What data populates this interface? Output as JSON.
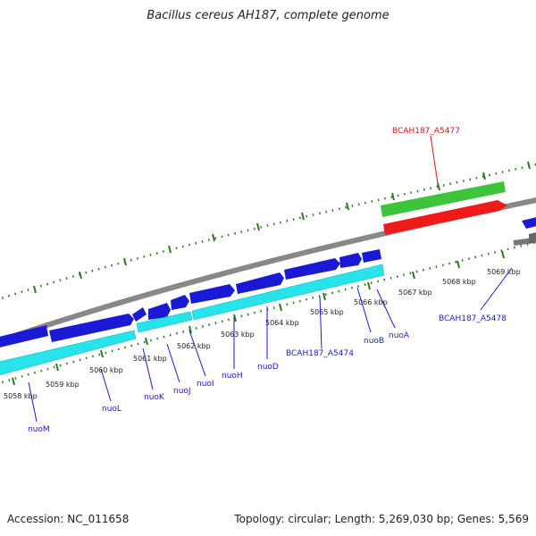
{
  "title": "Bacillus cereus AH187, complete genome",
  "footer": {
    "accession": "Accession: NC_011658",
    "summary": "Topology: circular; Length: 5,269,030 bp; Genes: 5,569"
  },
  "colors": {
    "backbone": "#888888",
    "tick": "#2a7d1e",
    "cds_forward": "#1a1ad6",
    "cds_highlight": "#4a2fa0",
    "gene_bar": "#27e3ea",
    "rrna_green": "#3ec43a",
    "rrna_red": "#ef1a1a",
    "label_blue": "#1a1acc",
    "label_red": "#dd1111"
  },
  "kbp_labels": [
    "5058 kbp",
    "5059 kbp",
    "5060 kbp",
    "5061 kbp",
    "5062 kbp",
    "5063 kbp",
    "5064 kbp",
    "5065 kbp",
    "5066 kbp",
    "5067 kbp",
    "5068 kbp",
    "5069 kbp"
  ],
  "gene_labels": {
    "bcah187_a5477": "BCAH187_A5477",
    "bcah187_a5478": "BCAH187_A5478",
    "bcah187_a5474": "BCAH187_A5474",
    "nuoM": "nuoM",
    "nuoL": "nuoL",
    "nuoK": "nuoK",
    "nuoJ": "nuoJ",
    "nuoI": "nuoI",
    "nuoH": "nuoH",
    "nuoD": "nuoD",
    "nuoB": "nuoB",
    "nuoA": "nuoA"
  }
}
